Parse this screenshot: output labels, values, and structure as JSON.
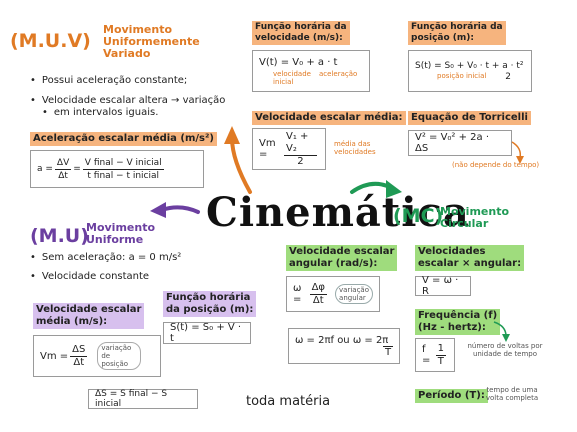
{
  "title": "Cinemática",
  "logo": "toda matéria",
  "muv": {
    "code": "(M.U.V)",
    "sub1": "Movimento",
    "sub2": "Uniformemente",
    "sub3": "Variado",
    "bullet1": "Possui aceleração constante;",
    "bullet2a": "Velocidade escalar altera → variação",
    "bullet2b": "em intervalos iguais.",
    "accel_label": "Aceleração escalar média (m/s²)",
    "accel_a": "a =",
    "accel_dv": "ΔV",
    "accel_dt": "Δt",
    "accel_eq": "=",
    "accel_num": "V final  − V inicial",
    "accel_den": "t final  − t inicial",
    "vel_fn_label_a": "Função horária da",
    "vel_fn_label_b": "velocidade (m/s):",
    "vel_fn": "V(t) = V₀ + a · t",
    "vel_fn_note1": "velocidade inicial",
    "vel_fn_note2": "aceleração",
    "pos_fn_label_a": "Função horária da",
    "pos_fn_label_b": "posição (m):",
    "pos_fn": "S(t) = S₀ + V₀ · t + a · t²",
    "pos_fn_den": "2",
    "pos_fn_note": "posição inicial",
    "vm_label": "Velocidade escalar média:",
    "vm_lhs": "Vm =",
    "vm_num": "V₁ + V₂",
    "vm_den": "2",
    "vm_note": "média das velocidades",
    "torr_label": "Equação de Torricelli",
    "torr": "V² = V₀² + 2a · ΔS",
    "torr_note": "(não depende do tempo)"
  },
  "mu": {
    "code": "(M.U)",
    "sub1": "Movimento",
    "sub2": "Uniforme",
    "bullet1": "Sem aceleração:  a = 0 m/s²",
    "bullet2": "Velocidade constante",
    "vm_label_a": "Velocidade escalar",
    "vm_label_b": "média (m/s):",
    "vm_lhs": "Vm =",
    "vm_num": "ΔS",
    "vm_den": "Δt",
    "vm_note": "variação de posição",
    "ds": "ΔS = S final − S inicial",
    "pos_label_a": "Função horária",
    "pos_label_b": "da posição (m):",
    "pos_fn": "S(t) = S₀ + V · t"
  },
  "mc": {
    "code": "(MC)",
    "sub1": "Movimento",
    "sub2": "Circular",
    "ang_label_a": "Velocidade escalar",
    "ang_label_b": "angular (rad/s):",
    "ang_lhs": "ω =",
    "ang_num": "Δφ",
    "ang_den": "Δt",
    "ang_note": "variação angular",
    "w_eq": "ω = 2πf  ou  ω = 2π",
    "w_den": "T",
    "vx_label_a": "Velocidades",
    "vx_label_b": "escalar × angular:",
    "vx": "V = ω · R",
    "freq_label_a": "Frequência (f)",
    "freq_label_b": "(Hz - hertz):",
    "f_lhs": "f =",
    "f_num": "1",
    "f_den": "T",
    "f_note": "número de voltas por unidade de tempo",
    "period_label": "Período (T):",
    "period_note": "tempo de uma volta completa"
  }
}
